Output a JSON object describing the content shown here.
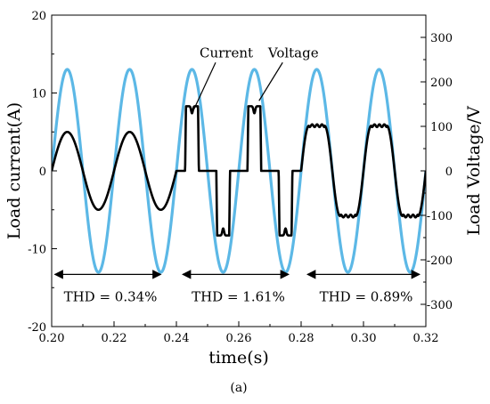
{
  "chart_data": {
    "type": "line",
    "caption": "(a)",
    "xlabel": "time(s)",
    "ylabel_left": "Load current(A)",
    "ylabel_right": "Load Voltage/V",
    "xlim": [
      0.2,
      0.32
    ],
    "ylim_left": [
      -20,
      20
    ],
    "ylim_right": [
      -350,
      350
    ],
    "x_ticks": [
      "0.20",
      "0.22",
      "0.24",
      "0.26",
      "0.28",
      "0.30",
      "0.32"
    ],
    "y_left_ticks": [
      "20",
      "10",
      "0",
      "-10",
      "-20"
    ],
    "y_left_tick_values": [
      20,
      10,
      0,
      -10,
      -20
    ],
    "y_right_ticks": [
      "300",
      "200",
      "100",
      "0",
      "-100",
      "-200",
      "-300"
    ],
    "y_right_tick_values": [
      300,
      200,
      100,
      0,
      -100,
      -200,
      -300
    ],
    "grid": false,
    "series": [
      {
        "name": "Voltage",
        "axis": "right",
        "color": "#5cb8e6",
        "frequency_hz": 50,
        "amplitude": 228
      },
      {
        "name": "Current",
        "axis": "left",
        "color": "#000000",
        "frequency_hz": 50,
        "segments": [
          {
            "x_start": 0.2,
            "x_end": 0.24,
            "waveform": "sine",
            "amplitude": 5.0
          },
          {
            "x_start": 0.24,
            "x_end": 0.28,
            "waveform": "rectified-pulse",
            "peak": 8.3,
            "dip": 7.4,
            "conduction_start_fraction": 0.28
          },
          {
            "x_start": 0.28,
            "x_end": 0.32,
            "waveform": "clipped-sine",
            "level": 5.8,
            "rise_fraction": 0.25
          }
        ]
      }
    ],
    "annotations": [
      {
        "text": "Current",
        "target_series": "Current",
        "label_x": 0.256,
        "label_y": 14.6,
        "arrow_x": 0.2455,
        "arrow_y": 7.8
      },
      {
        "text": "Voltage",
        "target_series": "Voltage",
        "label_x": 0.2775,
        "label_y": 14.6,
        "arrow_x": 0.2665,
        "arrow_y": 9.0
      }
    ],
    "intervals": [
      {
        "x_start": 0.201,
        "x_end": 0.235,
        "y": -13.3,
        "thd_label": "THD = 0.34%"
      },
      {
        "x_start": 0.242,
        "x_end": 0.276,
        "y": -13.3,
        "thd_label": "THD = 1.61%"
      },
      {
        "x_start": 0.282,
        "x_end": 0.318,
        "y": -13.3,
        "thd_label": "THD = 0.89%"
      }
    ]
  }
}
